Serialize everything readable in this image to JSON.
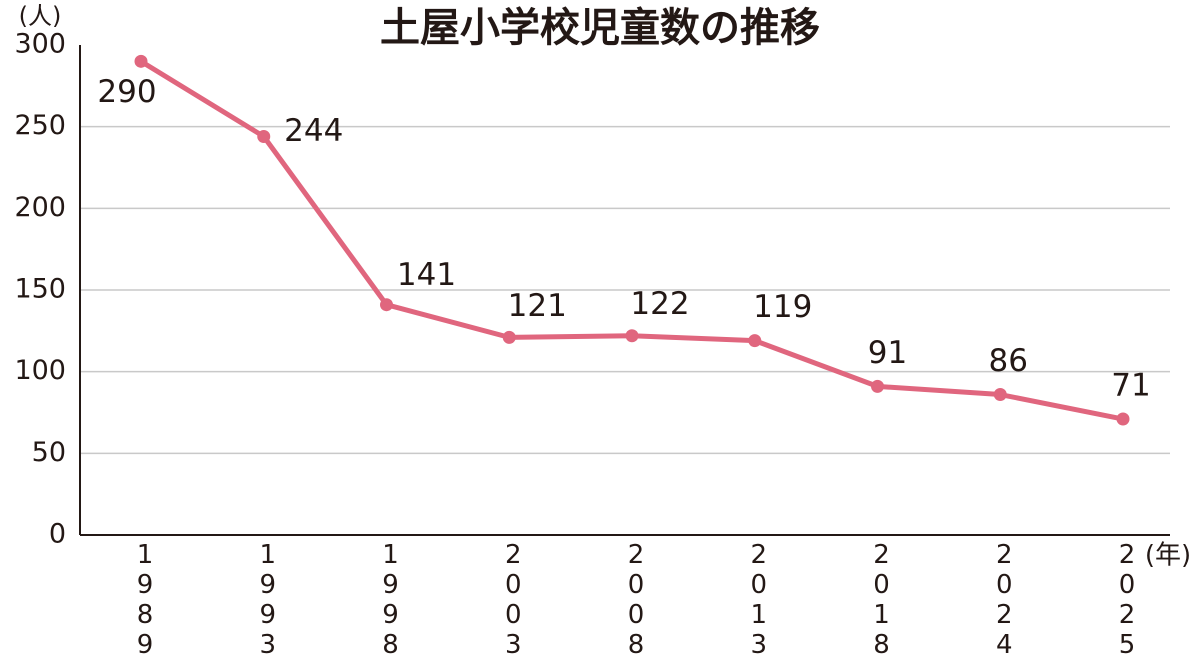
{
  "chart_data": {
    "type": "line",
    "title": "土屋小学校児童数の推移",
    "y_label": "(人)",
    "x_label": "(年)",
    "categories": [
      "1989",
      "1993",
      "1998",
      "2003",
      "2008",
      "2013",
      "2018",
      "2024",
      "2025"
    ],
    "series": [
      {
        "color": "#e0667e",
        "values": [
          290,
          244,
          141,
          121,
          122,
          119,
          91,
          86,
          71
        ]
      }
    ],
    "ylim": [
      0,
      300
    ],
    "yticks": [
      0,
      50,
      100,
      150,
      200,
      250,
      300
    ],
    "grid": true
  }
}
